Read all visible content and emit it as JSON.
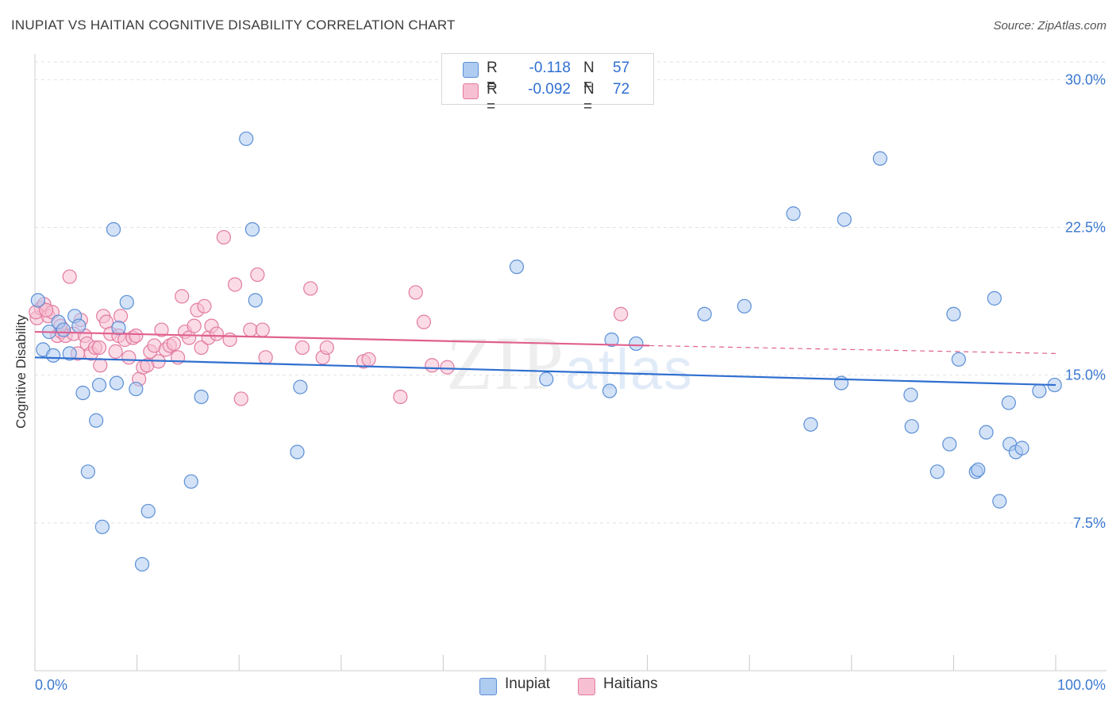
{
  "header": {
    "title": "INUPIAT VS HAITIAN COGNITIVE DISABILITY CORRELATION CHART",
    "source": "Source: ZipAtlas.com"
  },
  "legend_top": {
    "rows": [
      {
        "r_label": "R =",
        "r_value": "-0.118",
        "n_label": "N =",
        "n_value": "57"
      },
      {
        "r_label": "R =",
        "r_value": "-0.092",
        "n_label": "N =",
        "n_value": "72"
      }
    ]
  },
  "legend_bottom": {
    "items": [
      "Inupiat",
      "Haitians"
    ]
  },
  "colors": {
    "inupiat_fill": "#aecbf0",
    "inupiat_stroke": "#5b8fd6",
    "inupiat_line": "#2f6fd0",
    "haitians_fill": "#f7bfd2",
    "haitians_stroke": "#e27aa0",
    "haitians_line": "#e0608e",
    "axis_text": "#3b78d0",
    "grid": "#e2e2e2"
  },
  "chart_data": {
    "type": "scatter",
    "title": "INUPIAT VS HAITIAN COGNITIVE DISABILITY CORRELATION CHART",
    "ylabel": "Cognitive Disability",
    "xlabel": "",
    "xlim": [
      0,
      100
    ],
    "ylim": [
      0,
      30.9
    ],
    "x_tick_labels": [
      "0.0%",
      "100.0%"
    ],
    "y_ticks": [
      7.5,
      15.0,
      22.5,
      30.0
    ],
    "y_tick_labels": [
      "7.5%",
      "15.0%",
      "22.5%",
      "30.0%"
    ],
    "grid": "horizontal dashed",
    "legend_position": "top-center",
    "watermark": "ZIPatlas",
    "series": [
      {
        "name": "Inupiat",
        "r": -0.118,
        "n": 57,
        "trend": {
          "x": [
            0,
            100
          ],
          "y": [
            15.9,
            14.5
          ]
        },
        "points": [
          [
            0.3,
            18.8
          ],
          [
            0.8,
            16.3
          ],
          [
            1.4,
            17.2
          ],
          [
            1.8,
            16.0
          ],
          [
            2.3,
            17.7
          ],
          [
            2.8,
            17.3
          ],
          [
            3.4,
            16.1
          ],
          [
            3.9,
            18.0
          ],
          [
            4.3,
            17.5
          ],
          [
            4.7,
            14.1
          ],
          [
            5.2,
            10.1
          ],
          [
            6.0,
            12.7
          ],
          [
            6.3,
            14.5
          ],
          [
            6.6,
            7.3
          ],
          [
            7.7,
            22.4
          ],
          [
            8.0,
            14.6
          ],
          [
            8.2,
            17.4
          ],
          [
            9.0,
            18.7
          ],
          [
            9.9,
            14.3
          ],
          [
            10.5,
            5.4
          ],
          [
            11.1,
            8.1
          ],
          [
            15.3,
            9.6
          ],
          [
            16.3,
            13.9
          ],
          [
            20.7,
            27.0
          ],
          [
            21.3,
            22.4
          ],
          [
            21.6,
            18.8
          ],
          [
            25.7,
            11.1
          ],
          [
            26.0,
            14.4
          ],
          [
            47.2,
            20.5
          ],
          [
            50.1,
            14.8
          ],
          [
            56.3,
            14.2
          ],
          [
            56.5,
            16.8
          ],
          [
            58.9,
            16.6
          ],
          [
            65.6,
            18.1
          ],
          [
            69.5,
            18.5
          ],
          [
            74.3,
            23.2
          ],
          [
            76.0,
            12.5
          ],
          [
            79.0,
            14.6
          ],
          [
            79.3,
            22.9
          ],
          [
            82.8,
            26.0
          ],
          [
            85.8,
            14.0
          ],
          [
            85.9,
            12.4
          ],
          [
            88.4,
            10.1
          ],
          [
            89.6,
            11.5
          ],
          [
            90.0,
            18.1
          ],
          [
            90.5,
            15.8
          ],
          [
            92.2,
            10.1
          ],
          [
            92.4,
            10.2
          ],
          [
            93.2,
            12.1
          ],
          [
            94.0,
            18.9
          ],
          [
            94.5,
            8.6
          ],
          [
            95.4,
            13.6
          ],
          [
            95.5,
            11.5
          ],
          [
            96.1,
            11.1
          ],
          [
            96.7,
            11.3
          ],
          [
            98.4,
            14.2
          ],
          [
            99.9,
            14.5
          ]
        ]
      },
      {
        "name": "Haitians",
        "r": -0.092,
        "n": 72,
        "trend": {
          "x": [
            0,
            60.2
          ],
          "y": [
            17.2,
            16.5
          ]
        },
        "trend_dashed": {
          "x": [
            60.2,
            100
          ],
          "y": [
            16.5,
            16.1
          ]
        },
        "points": [
          [
            0.2,
            17.9
          ],
          [
            0.6,
            18.4
          ],
          [
            0.9,
            18.6
          ],
          [
            1.3,
            18.0
          ],
          [
            1.7,
            18.2
          ],
          [
            2.2,
            17.0
          ],
          [
            2.6,
            17.2
          ],
          [
            3.0,
            17.0
          ],
          [
            3.4,
            20.0
          ],
          [
            3.8,
            17.1
          ],
          [
            4.2,
            16.1
          ],
          [
            4.5,
            17.8
          ],
          [
            4.9,
            17.0
          ],
          [
            5.1,
            16.6
          ],
          [
            5.5,
            16.1
          ],
          [
            5.9,
            16.4
          ],
          [
            6.3,
            16.4
          ],
          [
            6.4,
            15.5
          ],
          [
            6.7,
            18.0
          ],
          [
            7.0,
            17.7
          ],
          [
            7.4,
            17.1
          ],
          [
            7.9,
            16.2
          ],
          [
            8.2,
            17.0
          ],
          [
            8.4,
            18.0
          ],
          [
            8.8,
            16.8
          ],
          [
            9.2,
            15.9
          ],
          [
            9.6,
            16.9
          ],
          [
            9.9,
            17.0
          ],
          [
            10.2,
            14.8
          ],
          [
            10.6,
            15.4
          ],
          [
            11.0,
            15.5
          ],
          [
            11.3,
            16.2
          ],
          [
            11.7,
            16.5
          ],
          [
            12.1,
            15.7
          ],
          [
            12.4,
            17.3
          ],
          [
            12.8,
            16.3
          ],
          [
            13.2,
            16.5
          ],
          [
            13.6,
            16.6
          ],
          [
            14.0,
            15.9
          ],
          [
            14.4,
            19.0
          ],
          [
            14.7,
            17.2
          ],
          [
            15.1,
            16.9
          ],
          [
            15.6,
            17.5
          ],
          [
            15.9,
            18.3
          ],
          [
            16.3,
            16.4
          ],
          [
            16.6,
            18.5
          ],
          [
            17.0,
            16.9
          ],
          [
            17.3,
            17.5
          ],
          [
            17.8,
            17.1
          ],
          [
            18.5,
            22.0
          ],
          [
            19.1,
            16.8
          ],
          [
            19.6,
            19.6
          ],
          [
            20.2,
            13.8
          ],
          [
            21.1,
            17.3
          ],
          [
            21.8,
            20.1
          ],
          [
            22.3,
            17.3
          ],
          [
            22.6,
            15.9
          ],
          [
            26.2,
            16.4
          ],
          [
            27.0,
            19.4
          ],
          [
            28.2,
            15.9
          ],
          [
            28.6,
            16.4
          ],
          [
            32.2,
            15.7
          ],
          [
            32.7,
            15.8
          ],
          [
            35.8,
            13.9
          ],
          [
            37.3,
            19.2
          ],
          [
            38.1,
            17.7
          ],
          [
            38.9,
            15.5
          ],
          [
            40.4,
            15.4
          ],
          [
            57.4,
            18.1
          ],
          [
            0.1,
            18.2
          ],
          [
            1.1,
            18.3
          ],
          [
            2.5,
            17.5
          ]
        ]
      }
    ]
  }
}
